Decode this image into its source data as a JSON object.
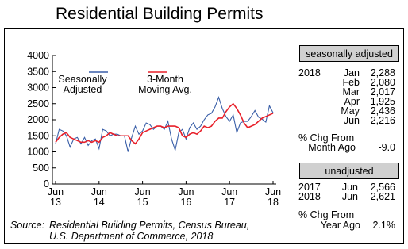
{
  "chart_data": {
    "type": "line",
    "title": "Residential Building Permits",
    "categories": [
      "Jun 13",
      null,
      null,
      null,
      null,
      null,
      null,
      null,
      null,
      null,
      null,
      null,
      "Jun 14",
      null,
      null,
      null,
      null,
      null,
      null,
      null,
      null,
      null,
      null,
      null,
      "Jun 15",
      null,
      null,
      null,
      null,
      null,
      null,
      null,
      null,
      null,
      null,
      null,
      "Jun 16",
      null,
      null,
      null,
      null,
      null,
      null,
      null,
      null,
      null,
      null,
      null,
      "Jun 17",
      null,
      null,
      null,
      null,
      null,
      null,
      null,
      null,
      null,
      null,
      null,
      "Jun 18"
    ],
    "series": [
      {
        "name": "Seasonally\nAdjusted",
        "color": "#3a5fa8",
        "values": [
          1250,
          1700,
          1650,
          1500,
          1150,
          1400,
          1450,
          1250,
          1450,
          1200,
          1350,
          1400,
          1100,
          1700,
          1650,
          1500,
          1550,
          1550,
          1500,
          1500,
          1000,
          1450,
          1800,
          1550,
          1650,
          1900,
          1850,
          1700,
          1800,
          1800,
          1700,
          1950,
          1400,
          1050,
          1600,
          1700,
          1400,
          1750,
          1900,
          1700,
          1800,
          2000,
          2150,
          2200,
          2400,
          2700,
          2350,
          2100,
          1950,
          2150,
          1600,
          1900,
          1950,
          1950,
          2100,
          2288,
          2080,
          2017,
          1925,
          2436,
          2216
        ]
      },
      {
        "name": "3-Month\nMoving Avg.",
        "color": "#e8202a",
        "values": [
          1300,
          1450,
          1550,
          1600,
          1450,
          1400,
          1350,
          1300,
          1300,
          1350,
          1300,
          1350,
          1300,
          1450,
          1500,
          1600,
          1550,
          1500,
          1500,
          1500,
          1500,
          1350,
          1250,
          1400,
          1600,
          1650,
          1700,
          1750,
          1800,
          1800,
          1750,
          1800,
          1800,
          1800,
          1750,
          1500,
          1450,
          1550,
          1600,
          1550,
          1650,
          1800,
          1750,
          1800,
          1950,
          2050,
          2050,
          2250,
          2400,
          2500,
          2350,
          2150,
          1900,
          1750,
          1800,
          1850,
          1950,
          2050,
          2100,
          2150,
          2200
        ]
      }
    ],
    "ylim": [
      0,
      4000
    ],
    "yticks": [
      0,
      500,
      1000,
      1500,
      2000,
      2500,
      3000,
      3500,
      4000
    ],
    "source": "Source:",
    "source_lines": [
      "Residential Building Permits, Census Bureau,",
      "U.S. Department of Commerce, 2018"
    ]
  },
  "panel": {
    "sa_header": "seasonally adjusted",
    "sa_year": "2018",
    "sa_rows": [
      [
        "Jan",
        "2,288"
      ],
      [
        "Feb",
        "2,080"
      ],
      [
        "Mar",
        "2,017"
      ],
      [
        "Apr",
        "1,925"
      ],
      [
        "May",
        "2,436"
      ],
      [
        "Jun",
        "2,216"
      ]
    ],
    "sa_change_label": [
      "% Chg From",
      "Month Ago"
    ],
    "sa_change": "-9.0",
    "ua_header": "unadjusted",
    "ua_rows": [
      [
        "2017",
        "Jun",
        "2,566"
      ],
      [
        "2018",
        "Jun",
        "2,621"
      ]
    ],
    "ua_change_label": [
      "% Chg From",
      "Year Ago"
    ],
    "ua_change": "2.1%"
  }
}
